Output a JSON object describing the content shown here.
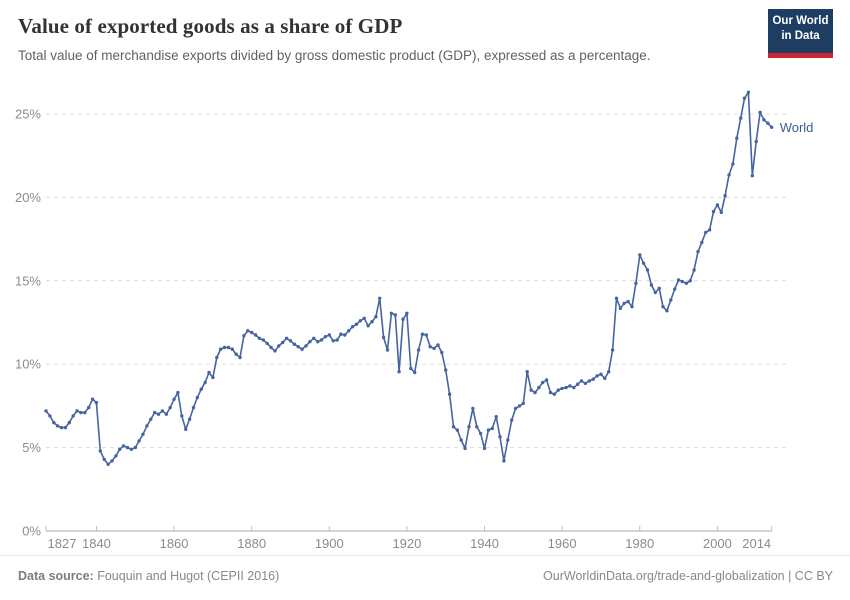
{
  "header": {
    "title": "Value of exported goods as a share of GDP",
    "subtitle": "Total value of merchandise exports divided by gross domestic product (GDP), expressed as a percentage."
  },
  "logo": {
    "line1": "Our World",
    "line2": "in Data"
  },
  "footer": {
    "source_label": "Data source:",
    "source_value": " Fouquin and Hugot (CEPII 2016)",
    "link": "OurWorldinData.org/trade-and-globalization | CC BY"
  },
  "chart_data": {
    "type": "line",
    "title": "Value of exported goods as a share of GDP",
    "series_label": "World",
    "x_start": 1827,
    "x_end": 2014,
    "xlabel": "",
    "ylabel": "",
    "ylim": [
      0,
      27
    ],
    "grid": true,
    "legend_position": "end-of-line",
    "yticks": [
      0,
      5,
      10,
      15,
      20,
      25
    ],
    "ytick_suffix": "%",
    "xticks": [
      1827,
      1840,
      1860,
      1880,
      1900,
      1920,
      1940,
      1960,
      1980,
      2000,
      2014
    ],
    "colors": {
      "line": "#46649f",
      "label": "#3d5c8f",
      "grid": "#dcdcdc",
      "axis": "#a8a8a8",
      "tick": "#bdbdbd",
      "axis_text": "#8c8c8c"
    },
    "values": [
      7.2,
      6.9,
      6.5,
      6.3,
      6.2,
      6.2,
      6.5,
      6.9,
      7.2,
      7.1,
      7.1,
      7.4,
      7.9,
      7.7,
      4.8,
      4.3,
      4.0,
      4.2,
      4.5,
      4.9,
      5.1,
      5.0,
      4.9,
      5.0,
      5.4,
      5.8,
      6.3,
      6.7,
      7.1,
      7.0,
      7.2,
      7.0,
      7.4,
      7.9,
      8.3,
      6.9,
      6.1,
      6.7,
      7.4,
      8.0,
      8.5,
      8.9,
      9.5,
      9.2,
      10.4,
      10.9,
      11.0,
      11.0,
      10.9,
      10.6,
      10.4,
      11.7,
      12.0,
      11.9,
      11.75,
      11.55,
      11.45,
      11.25,
      11.0,
      10.8,
      11.1,
      11.3,
      11.55,
      11.4,
      11.2,
      11.05,
      10.9,
      11.1,
      11.35,
      11.55,
      11.35,
      11.45,
      11.65,
      11.75,
      11.4,
      11.45,
      11.8,
      11.75,
      12.0,
      12.25,
      12.4,
      12.6,
      12.75,
      12.3,
      12.55,
      12.85,
      13.95,
      11.6,
      10.85,
      13.05,
      12.95,
      9.55,
      12.7,
      13.05,
      9.75,
      9.5,
      10.85,
      11.8,
      11.75,
      11.05,
      10.95,
      11.15,
      10.7,
      9.65,
      8.2,
      6.25,
      6.05,
      5.45,
      4.95,
      6.25,
      7.35,
      6.25,
      5.85,
      4.95,
      6.05,
      6.15,
      6.85,
      5.65,
      4.2,
      5.45,
      6.65,
      7.35,
      7.5,
      7.65,
      9.55,
      8.45,
      8.3,
      8.6,
      8.9,
      9.05,
      8.3,
      8.2,
      8.45,
      8.55,
      8.6,
      8.7,
      8.6,
      8.8,
      9.0,
      8.85,
      9.0,
      9.1,
      9.3,
      9.4,
      9.15,
      9.55,
      10.85,
      13.95,
      13.35,
      13.65,
      13.75,
      13.45,
      14.85,
      16.55,
      16.05,
      15.65,
      14.75,
      14.3,
      14.55,
      13.45,
      13.2,
      13.85,
      14.5,
      15.05,
      14.95,
      14.85,
      15.0,
      15.65,
      16.75,
      17.3,
      17.9,
      18.05,
      19.15,
      19.55,
      19.1,
      20.1,
      21.35,
      22.0,
      23.55,
      24.75,
      25.95,
      26.3,
      21.3,
      23.35,
      25.1,
      24.65,
      24.45,
      24.2
    ]
  }
}
